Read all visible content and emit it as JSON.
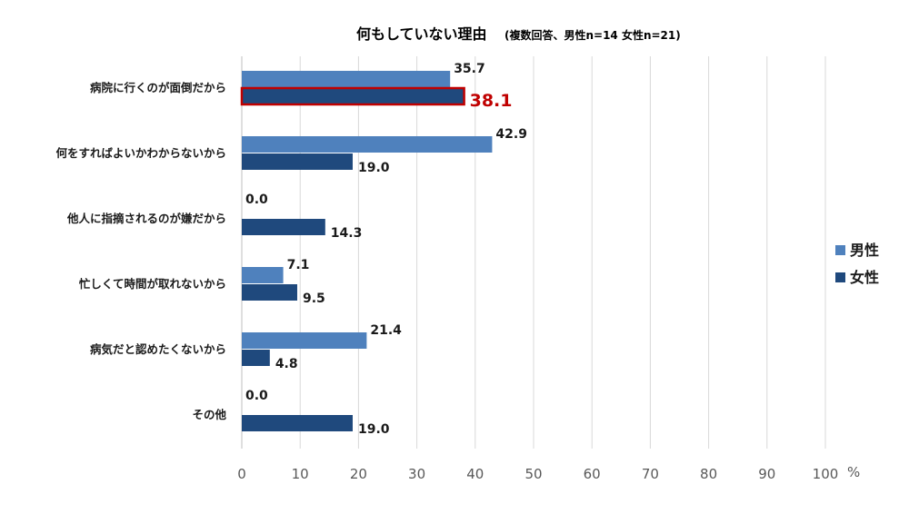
{
  "chart_data": {
    "type": "bar",
    "orientation": "horizontal",
    "title": "何もしていない理由",
    "subtitle": "(複数回答、男性n=14 女性n=21)",
    "categories": [
      "病院に行くのが面倒だから",
      "何をすればよいかわからないから",
      "他人に指摘されるのが嫌だから",
      "忙しくて時間が取れないから",
      "病気だと認めたくないから",
      "その他"
    ],
    "series": [
      {
        "name": "男性",
        "color": "#4f81bd",
        "values": [
          35.7,
          42.9,
          0.0,
          7.1,
          21.4,
          0.0
        ],
        "labels": [
          "35.7",
          "42.9",
          "0.0",
          "7.1",
          "21.4",
          "0.0"
        ]
      },
      {
        "name": "女性",
        "color": "#1f497d",
        "values": [
          38.1,
          19.0,
          14.3,
          9.5,
          4.8,
          19.0
        ],
        "labels": [
          "38.1",
          "19.0",
          "14.3",
          "9.5",
          "4.8",
          "19.0"
        ]
      }
    ],
    "highlight": {
      "series": 1,
      "category": 0,
      "color": "#c00000"
    },
    "xlim": [
      0,
      100
    ],
    "xticks": [
      0,
      10,
      20,
      30,
      40,
      50,
      60,
      70,
      80,
      90,
      100
    ],
    "xtick_labels": [
      "0",
      "10",
      "20",
      "30",
      "40",
      "50",
      "60",
      "70",
      "80",
      "90",
      "100"
    ],
    "xlabel": "%",
    "grid": "vertical",
    "legend": "right"
  }
}
